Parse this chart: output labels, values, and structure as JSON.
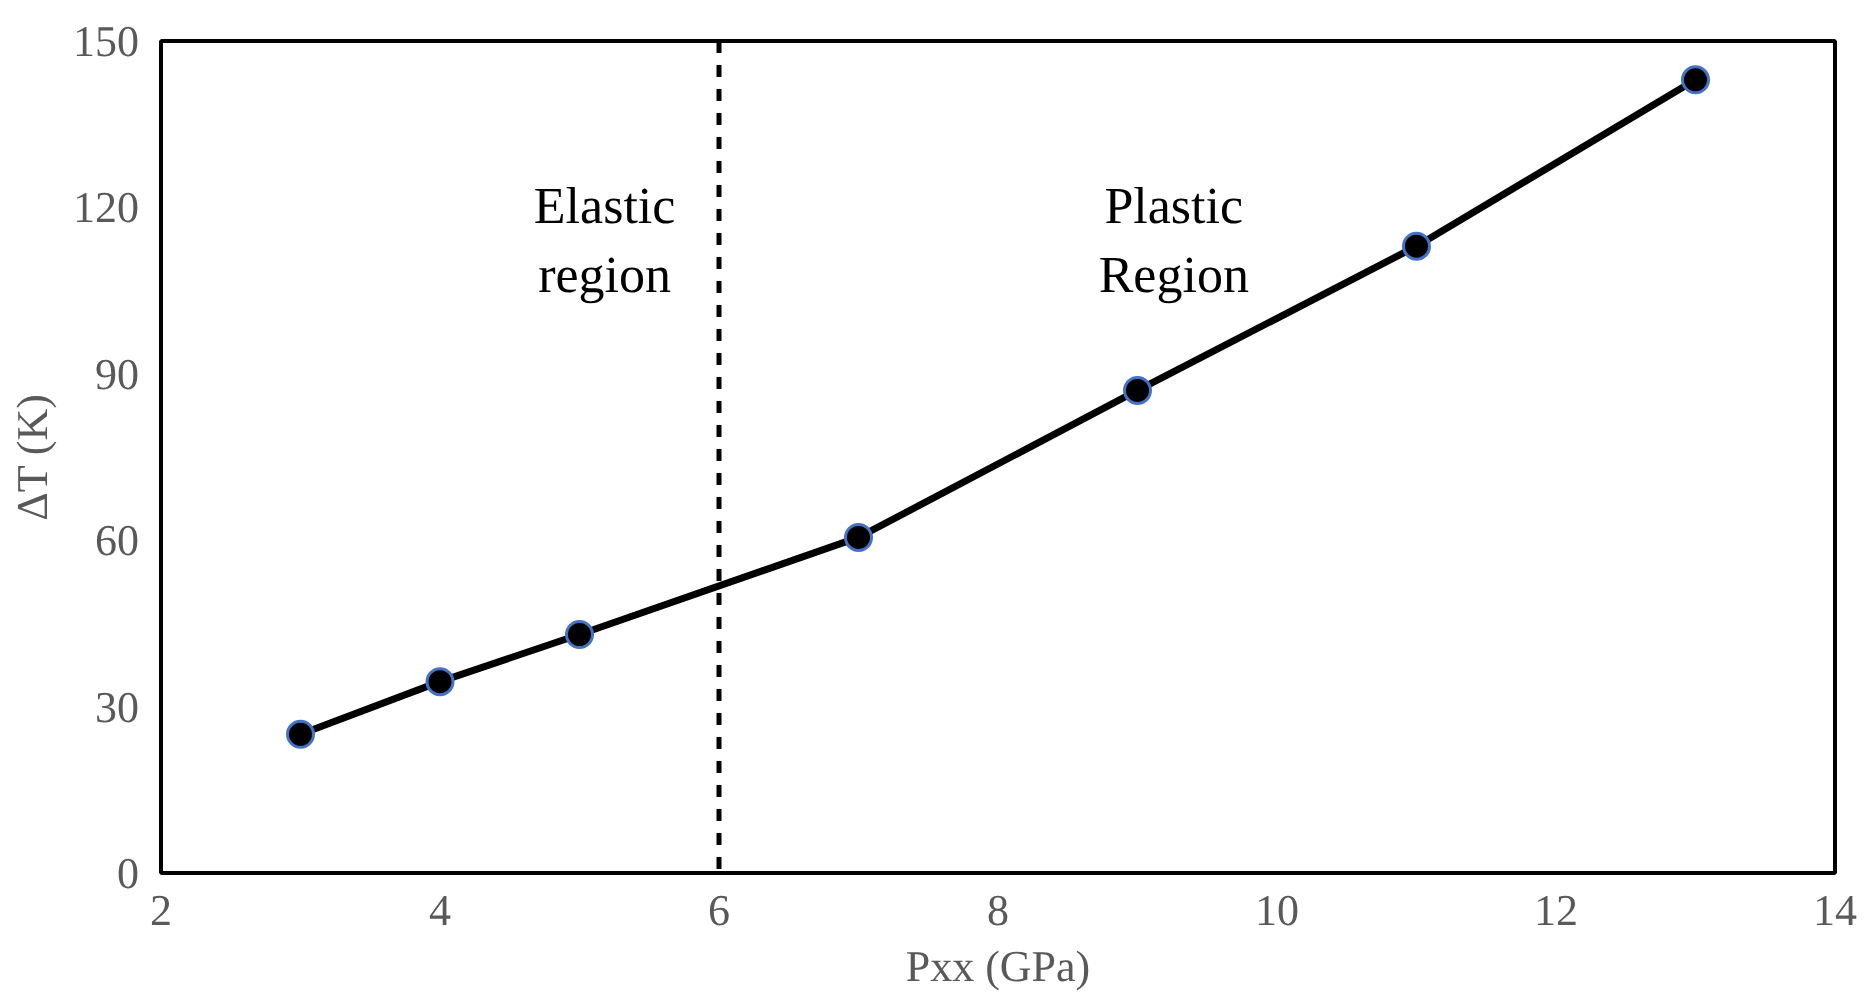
{
  "chart_data": {
    "type": "line",
    "xlabel": "Pxx (GPa)",
    "ylabel": "ΔT (K)",
    "x": [
      3,
      4,
      5,
      7,
      9,
      11,
      13
    ],
    "series": [
      {
        "color": "#000000",
        "values": [
          25,
          34.5,
          43,
          60.5,
          87,
          113,
          143
        ]
      }
    ],
    "xlim": [
      2,
      14
    ],
    "xticks": [
      2,
      4,
      6,
      8,
      10,
      12,
      14
    ],
    "ylim": [
      0,
      150
    ],
    "yticks": [
      0,
      30,
      60,
      90,
      120,
      150
    ],
    "grid": false,
    "marker": "circle",
    "line_style": "solid",
    "ref_lines": [
      {
        "axis": "x",
        "value": 6,
        "line_style": "dashed",
        "color": "#000000"
      }
    ],
    "annotations": [
      "Elastic\nregion",
      "Plastic\nRegion"
    ]
  }
}
